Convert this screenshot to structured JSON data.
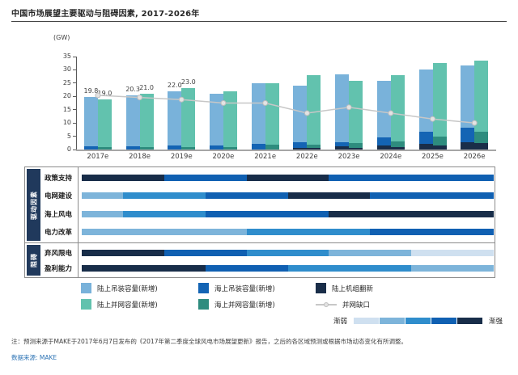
{
  "title": "中国市场展望主要驱动与阻碍因素, 2017-2026年",
  "unit_label": "(GW)",
  "chart_data": {
    "type": "bar",
    "title": "中国市场展望主要驱动与阻碍因素, 2017-2026年",
    "ylabel": "(GW)",
    "ylim": [
      0,
      35
    ],
    "yticks": [
      0,
      5,
      10,
      15,
      20,
      25,
      30,
      35
    ],
    "grid": false,
    "categories": [
      "2017e",
      "2018e",
      "2019e",
      "2020e",
      "2021e",
      "2022e",
      "2023e",
      "2024e",
      "2025e",
      "2026e"
    ],
    "stacks": {
      "installed": [
        {
          "name": "陆上机组翻新",
          "color": "#1a2e49",
          "values": [
            0,
            0,
            0,
            0,
            0,
            0.6,
            1.1,
            1.4,
            2.2,
            2.7
          ]
        },
        {
          "name": "海上吊装容量(新增)",
          "color": "#1464b4",
          "values": [
            1.1,
            1.3,
            1.5,
            1.6,
            2.1,
            2.0,
            1.7,
            3.1,
            4.4,
            5.5
          ]
        },
        {
          "name": "陆上吊装容量(新增)",
          "color": "#79b2da",
          "values": [
            18.7,
            19.0,
            20.5,
            19.4,
            22.9,
            21.4,
            25.4,
            21.5,
            23.6,
            23.5
          ]
        }
      ],
      "grid_connected": [
        {
          "name": "陆上机组翻新",
          "color": "#1a2e49",
          "values": [
            0,
            0,
            0,
            0,
            0,
            0.5,
            0.7,
            0.8,
            1.6,
            2.5
          ]
        },
        {
          "name": "海上并网容量(新增)",
          "color": "#2e8c7e",
          "values": [
            0.8,
            0.8,
            0.9,
            1.0,
            1.8,
            1.3,
            1.6,
            2.3,
            3.3,
            4.1
          ]
        },
        {
          "name": "陆上并网容量(新增)",
          "color": "#62c2ae",
          "values": [
            18.2,
            20.2,
            22.1,
            20.8,
            23.2,
            26.3,
            23.5,
            25.0,
            27.6,
            26.9
          ]
        }
      ]
    },
    "line": {
      "name": "并网缺口",
      "color": "#c7c7c7",
      "marker_fill": "#e3e3e3",
      "marker_stroke": "#bdbdbd",
      "values": [
        20.4,
        19.6,
        18.8,
        17.5,
        17.5,
        13.7,
        15.9,
        13.7,
        11.5,
        10.0
      ]
    },
    "bar_value_labels": {
      "installed": [
        "19.8",
        "20.3",
        "22.0",
        null,
        null,
        null,
        null,
        null,
        null,
        null
      ],
      "grid_connected": [
        "19.0",
        "21.0",
        "23.0",
        null,
        null,
        null,
        null,
        null,
        null,
        null
      ]
    }
  },
  "matrix": {
    "scale_colors": {
      "1": "#cfe0f0",
      "2": "#7db4da",
      "3": "#2f8dcc",
      "4": "#1060b2",
      "5": "#182d49"
    },
    "sidebar_color": "#20395c",
    "groups": [
      {
        "label": "驱动因素",
        "rows": [
          {
            "label": "政策支持",
            "segments": [
              {
                "span": 2,
                "level": 5
              },
              {
                "span": 2,
                "level": 4
              },
              {
                "span": 2,
                "level": 5
              },
              {
                "span": 4,
                "level": 4
              }
            ]
          },
          {
            "label": "电网建设",
            "segments": [
              {
                "span": 1,
                "level": 2
              },
              {
                "span": 2,
                "level": 3
              },
              {
                "span": 2,
                "level": 4
              },
              {
                "span": 2,
                "level": 5
              },
              {
                "span": 3,
                "level": 4
              }
            ]
          },
          {
            "label": "海上风电",
            "segments": [
              {
                "span": 1,
                "level": 2
              },
              {
                "span": 2,
                "level": 3
              },
              {
                "span": 3,
                "level": 4
              },
              {
                "span": 4,
                "level": 5
              }
            ]
          },
          {
            "label": "电力改革",
            "segments": [
              {
                "span": 4,
                "level": 2
              },
              {
                "span": 3,
                "level": 3
              },
              {
                "span": 3,
                "level": 4
              }
            ]
          }
        ]
      },
      {
        "label": "阻碍",
        "rows": [
          {
            "label": "弃风限电",
            "segments": [
              {
                "span": 2,
                "level": 5
              },
              {
                "span": 2,
                "level": 4
              },
              {
                "span": 2,
                "level": 3
              },
              {
                "span": 2,
                "level": 2
              },
              {
                "span": 2,
                "level": 1
              }
            ]
          },
          {
            "label": "盈利能力",
            "segments": [
              {
                "span": 3,
                "level": 5
              },
              {
                "span": 2,
                "level": 4
              },
              {
                "span": 3,
                "level": 3
              },
              {
                "span": 2,
                "level": 2
              }
            ]
          }
        ]
      }
    ]
  },
  "legend": {
    "items": [
      {
        "label": "陆上吊装容量(新增)",
        "color": "#79b2da",
        "icon": "swatch"
      },
      {
        "label": "海上吊装容量(新增)",
        "color": "#1464b4",
        "icon": "swatch"
      },
      {
        "label": "陆上机组翻新",
        "color": "#1a2e49",
        "icon": "swatch"
      },
      {
        "label": "陆上并网容量(新增)",
        "color": "#62c2ae",
        "icon": "swatch"
      },
      {
        "label": "海上并网容量(新增)",
        "color": "#2e8c7e",
        "icon": "swatch"
      },
      {
        "label": "并网缺口",
        "color": "#c7c7c7",
        "icon": "line"
      }
    ]
  },
  "gradient_legend": {
    "weak": "渐弱",
    "strong": "渐强",
    "levels": [
      1,
      2,
      3,
      4,
      5
    ]
  },
  "footnote": "注：预测来源于MAKE于2017年6月7日发布的《2017年第二季度全球风电市场展望更新》报告，之后的各区域预测或根据市场动态变化有所调整。",
  "source": "数据来源: MAKE"
}
